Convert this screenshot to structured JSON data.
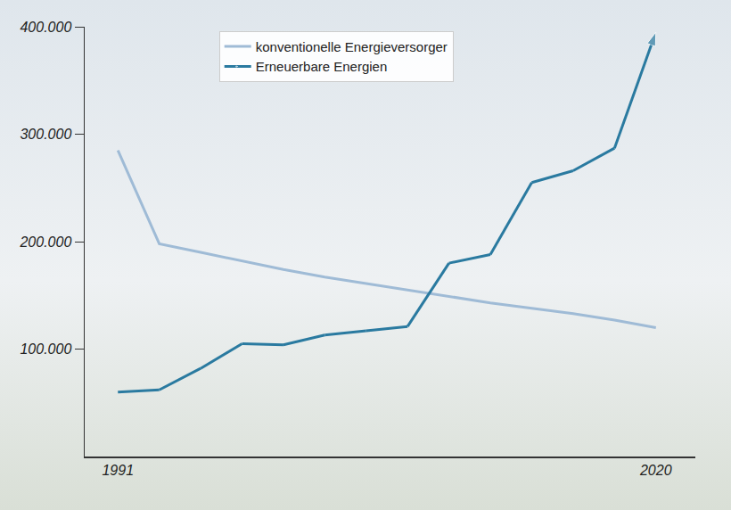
{
  "chart_data": {
    "type": "line",
    "categories": [
      "1991",
      null,
      null,
      null,
      null,
      null,
      null,
      null,
      null,
      null,
      null,
      null,
      null,
      "2020"
    ],
    "series": [
      {
        "name": "konventionelle Energieversorger",
        "color": "#9fbbd6",
        "line_style": "solid",
        "values": [
          285000,
          198000,
          190000,
          182000,
          174000,
          167000,
          161000,
          155000,
          149000,
          143000,
          138000,
          133000,
          127000,
          120000
        ]
      },
      {
        "name": "Erneuerbare Energien",
        "color": "#2a7aa0",
        "line_style": "solid",
        "marker": "arrow",
        "values": [
          60000,
          62000,
          82000,
          105000,
          104000,
          113000,
          117000,
          121000,
          180000,
          188000,
          255000,
          266000,
          287000,
          395000
        ]
      }
    ],
    "ylim": [
      0,
      400000
    ],
    "yticks": [
      {
        "value": 100000,
        "label": "100.000"
      },
      {
        "value": 200000,
        "label": "200.000"
      },
      {
        "value": 300000,
        "label": "300.000"
      },
      {
        "value": 400000,
        "label": "400.000"
      }
    ],
    "grid": false,
    "legend": "top-left"
  }
}
